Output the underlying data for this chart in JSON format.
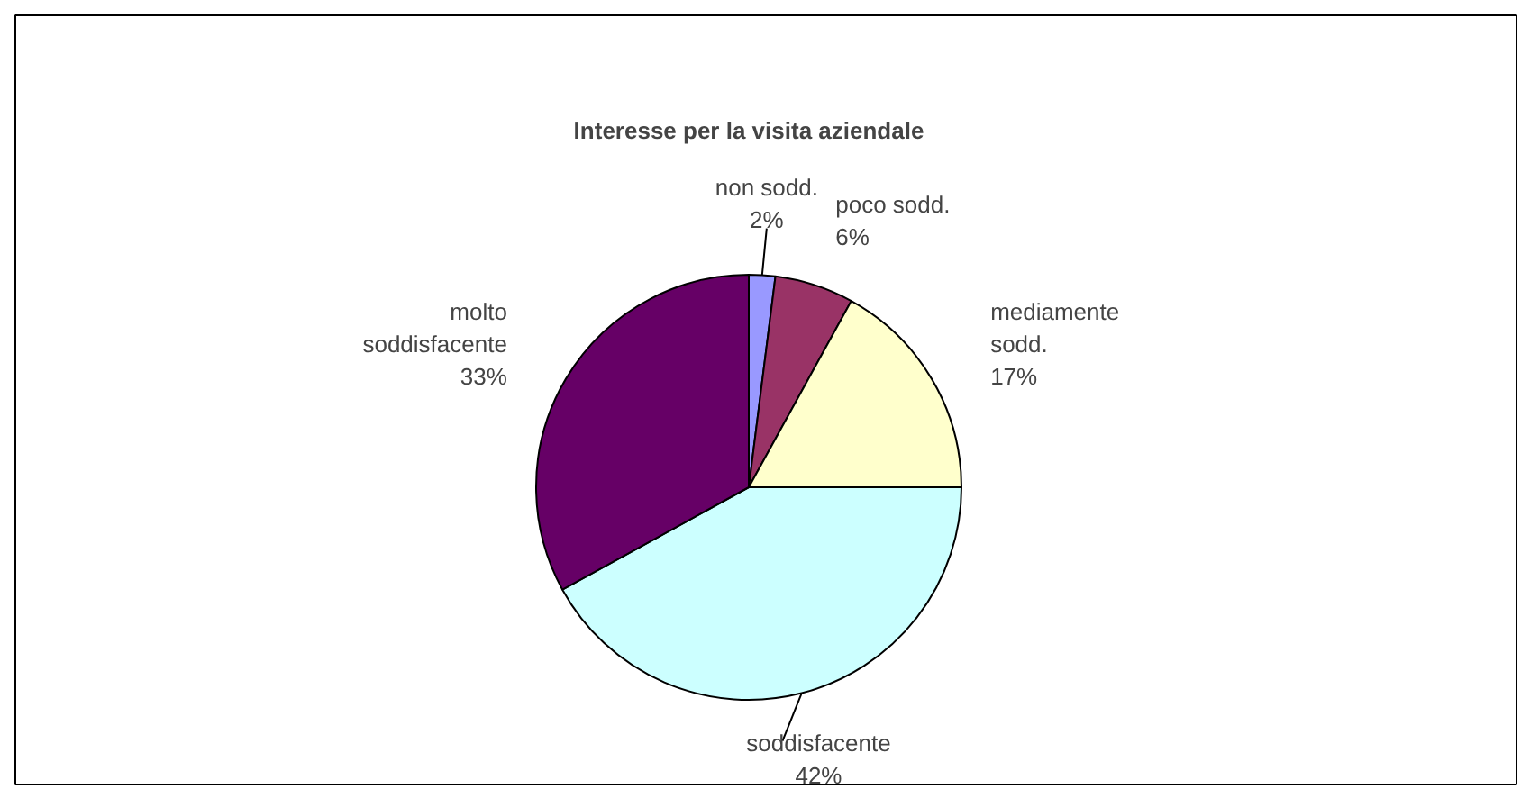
{
  "chart_data": {
    "type": "pie",
    "title": "Interesse per la visita aziendale",
    "categories": [
      "non sodd.",
      "poco sodd.",
      "mediamente\nsodd.",
      "soddisfacente",
      "molto\nsoddisfacente"
    ],
    "values": [
      2,
      6,
      17,
      42,
      33
    ],
    "colors": [
      "#9999ff",
      "#993366",
      "#ffffcc",
      "#ccffff",
      "#660066"
    ],
    "value_labels": [
      "2%",
      "6%",
      "17%",
      "42%",
      "33%"
    ]
  }
}
